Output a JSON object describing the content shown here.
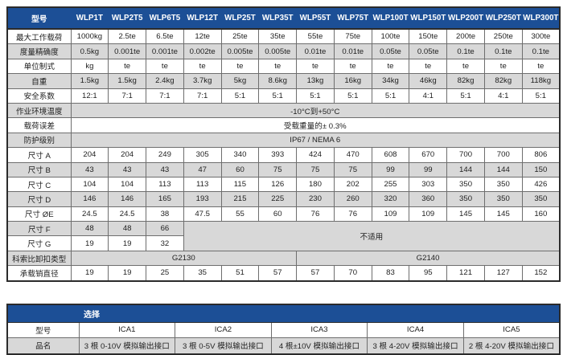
{
  "colors": {
    "header_blue": "#1c4f96",
    "alt_row_gray": "#d8d8d8",
    "border_gray": "#6e6e6e",
    "outer_border": "#2b2b2b",
    "header_text": "#ffffff",
    "body_text": "#1f1f1f"
  },
  "spec_table": {
    "corner_label": "型号",
    "models": [
      "WLP1T",
      "WLP2T5",
      "WLP6T5",
      "WLP12T",
      "WLP25T",
      "WLP35T",
      "WLP55T",
      "WLP75T",
      "WLP100T",
      "WLP150T",
      "WLP200T",
      "WLP250T",
      "WLP300T"
    ],
    "rows": [
      {
        "label": "最大工作载荷",
        "cells": [
          "1000kg",
          "2.5te",
          "6.5te",
          "12te",
          "25te",
          "35te",
          "55te",
          "75te",
          "100te",
          "150te",
          "200te",
          "250te",
          "300te"
        ]
      },
      {
        "label": "度量精确度",
        "cells": [
          "0.5kg",
          "0.001te",
          "0.001te",
          "0.002te",
          "0.005te",
          "0.005te",
          "0.01te",
          "0.01te",
          "0.05te",
          "0.05te",
          "0.1te",
          "0.1te",
          "0.1te"
        ]
      },
      {
        "label": "单位制式",
        "cells": [
          "kg",
          "te",
          "te",
          "te",
          "te",
          "te",
          "te",
          "te",
          "te",
          "te",
          "te",
          "te",
          "te"
        ]
      },
      {
        "label": "自重",
        "cells": [
          "1.5kg",
          "1.5kg",
          "2.4kg",
          "3.7kg",
          "5kg",
          "8.6kg",
          "13kg",
          "16kg",
          "34kg",
          "46kg",
          "82kg",
          "82kg",
          "118kg"
        ]
      },
      {
        "label": "安全系数",
        "cells": [
          "12:1",
          "7:1",
          "7:1",
          "7:1",
          "5:1",
          "5:1",
          "5:1",
          "5:1",
          "5:1",
          "4:1",
          "5:1",
          "4:1",
          "5:1"
        ]
      },
      {
        "label": "作业环境温度",
        "span": "-10°C到+50°C"
      },
      {
        "label": "载荷误差",
        "span": "受载重量的± 0.3%"
      },
      {
        "label": "防护级别",
        "span": "IP67 / NEMA 6"
      },
      {
        "label": "尺寸 A",
        "cells": [
          "204",
          "204",
          "249",
          "305",
          "340",
          "393",
          "424",
          "470",
          "608",
          "670",
          "700",
          "700",
          "806"
        ]
      },
      {
        "label": "尺寸 B",
        "cells": [
          "43",
          "43",
          "43",
          "47",
          "60",
          "75",
          "75",
          "75",
          "99",
          "99",
          "144",
          "144",
          "150"
        ]
      },
      {
        "label": "尺寸 C",
        "cells": [
          "104",
          "104",
          "113",
          "113",
          "115",
          "126",
          "180",
          "202",
          "255",
          "303",
          "350",
          "350",
          "426"
        ]
      },
      {
        "label": "尺寸 D",
        "cells": [
          "146",
          "146",
          "165",
          "193",
          "215",
          "225",
          "230",
          "260",
          "320",
          "360",
          "350",
          "350",
          "350"
        ]
      },
      {
        "label": "尺寸 ØE",
        "cells": [
          "24.5",
          "24.5",
          "38",
          "47.5",
          "55",
          "60",
          "76",
          "76",
          "109",
          "109",
          "145",
          "145",
          "160"
        ]
      },
      {
        "label": "尺寸 F",
        "cells": [
          "48",
          "48",
          "66"
        ],
        "merge_right": {
          "text": "不适用",
          "colspan": 10,
          "rowspan": 2
        }
      },
      {
        "label": "尺寸 G",
        "cells": [
          "19",
          "19",
          "32"
        ]
      },
      {
        "label": "科索比卸扣类型",
        "spans": [
          {
            "text": "G2130",
            "colspan": 6
          },
          {
            "text": "G2140",
            "colspan": 7
          }
        ]
      },
      {
        "label": "承载销直径",
        "cells": [
          "19",
          "19",
          "25",
          "35",
          "51",
          "57",
          "57",
          "70",
          "83",
          "95",
          "121",
          "127",
          "152"
        ]
      }
    ]
  },
  "options_table": {
    "title": "选择",
    "row_model": {
      "label": "型号",
      "cells": [
        "ICA1",
        "ICA2",
        "ICA3",
        "ICA4",
        "ICA5"
      ]
    },
    "row_product": {
      "label": "品名",
      "cells": [
        "3 根 0-10V 模拟输出接口",
        "3 根 0-5V 模拟输出接口",
        "4 根±10V 模拟输出接口",
        "3 根 4-20V 模拟输出接口",
        "2 根 4-20V 模拟输出接口"
      ]
    }
  }
}
